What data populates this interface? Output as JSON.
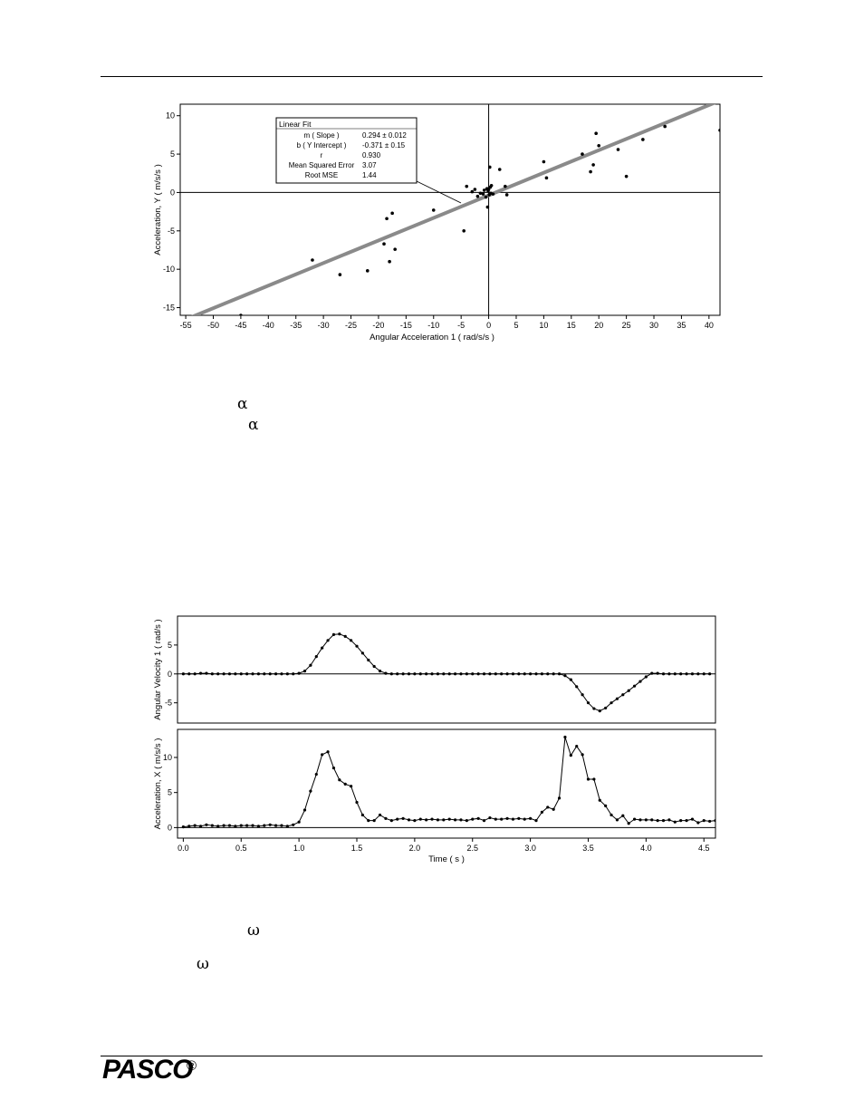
{
  "page": {
    "greek": [
      "α",
      "α",
      "ω",
      "ω"
    ]
  },
  "footer": {
    "logo": "PASCO",
    "registered": "®"
  },
  "chart_data": [
    {
      "type": "scatter",
      "xlabel": "Angular Acceleration 1 ( rad/s/s )",
      "ylabel": "Acceleration, Y ( m/s/s )",
      "xlim": [
        -56,
        42
      ],
      "ylim": [
        -16,
        11.5
      ],
      "xticks": [
        -55,
        -50,
        -45,
        -40,
        -35,
        -30,
        -25,
        -20,
        -15,
        -10,
        -5,
        0,
        5,
        10,
        15,
        20,
        25,
        30,
        35,
        40
      ],
      "yticks": [
        -15,
        -10,
        -5,
        0,
        5,
        10
      ],
      "fit": {
        "title": "Linear Fit",
        "rows": [
          {
            "label": "m ( Slope )",
            "value": "0.294 ± 0.012"
          },
          {
            "label": "b ( Y Intercept )",
            "value": "-0.371 ±  0.15"
          },
          {
            "label": "r",
            "value": "0.930"
          },
          {
            "label": "Mean Squared Error",
            "value": "3.07"
          },
          {
            "label": "Root MSE",
            "value": "1.44"
          }
        ],
        "slope": 0.294,
        "intercept": -0.371
      },
      "points": [
        [
          -45,
          -16
        ],
        [
          -32,
          -8.8
        ],
        [
          -27,
          -10.7
        ],
        [
          -22,
          -10.2
        ],
        [
          -19,
          -6.7
        ],
        [
          -18.5,
          -3.4
        ],
        [
          -18,
          -9
        ],
        [
          -17.5,
          -2.7
        ],
        [
          -17,
          -7.4
        ],
        [
          -10,
          -2.3
        ],
        [
          -4.5,
          -5
        ],
        [
          -4,
          0.8
        ],
        [
          -3,
          0.1
        ],
        [
          -2.5,
          0.4
        ],
        [
          -2,
          -0.5
        ],
        [
          -1.5,
          -0.1
        ],
        [
          -1,
          -0.2
        ],
        [
          -0.8,
          0.3
        ],
        [
          -0.5,
          -0.6
        ],
        [
          -0.3,
          0.5
        ],
        [
          -0.2,
          -1.9
        ],
        [
          -0.1,
          0.2
        ],
        [
          0,
          0.4
        ],
        [
          0.1,
          -0.3
        ],
        [
          0.2,
          3.3
        ],
        [
          0.3,
          0.7
        ],
        [
          0.4,
          -0.1
        ],
        [
          0.5,
          0.9
        ],
        [
          0.8,
          -0.2
        ],
        [
          2,
          3.0
        ],
        [
          3,
          0.8
        ],
        [
          3.3,
          -0.3
        ],
        [
          10,
          4.0
        ],
        [
          10.5,
          1.9
        ],
        [
          17,
          5.0
        ],
        [
          18.5,
          2.7
        ],
        [
          19,
          3.6
        ],
        [
          19.5,
          7.7
        ],
        [
          20,
          6.1
        ],
        [
          23.5,
          5.6
        ],
        [
          25,
          2.1
        ],
        [
          28,
          6.9
        ],
        [
          32,
          8.6
        ],
        [
          42,
          8.1
        ]
      ]
    },
    {
      "type": "line",
      "ylabel": "Angular Velocity 1 ( rad/s )",
      "ylim": [
        -8.5,
        10
      ],
      "yticks": [
        -5,
        0,
        5
      ],
      "xlim": [
        -0.05,
        4.6
      ],
      "series": [
        {
          "x": [
            0,
            0.05,
            0.1,
            0.15,
            0.2,
            0.25,
            0.3,
            0.35,
            0.4,
            0.45,
            0.5,
            0.55,
            0.6,
            0.65,
            0.7,
            0.75,
            0.8,
            0.85,
            0.9,
            0.95,
            1.0,
            1.05,
            1.1,
            1.15,
            1.2,
            1.25,
            1.3,
            1.35,
            1.4,
            1.45,
            1.5,
            1.55,
            1.6,
            1.65,
            1.7,
            1.75,
            1.8,
            1.85,
            1.9,
            1.95,
            2.0,
            2.05,
            2.1,
            2.15,
            2.2,
            2.25,
            2.3,
            2.35,
            2.4,
            2.45,
            2.5,
            2.55,
            2.6,
            2.65,
            2.7,
            2.75,
            2.8,
            2.85,
            2.9,
            2.95,
            3.0,
            3.05,
            3.1,
            3.15,
            3.2,
            3.25,
            3.3,
            3.35,
            3.4,
            3.45,
            3.5,
            3.55,
            3.6,
            3.65,
            3.7,
            3.75,
            3.8,
            3.85,
            3.9,
            3.95,
            4.0,
            4.05,
            4.1,
            4.15,
            4.2,
            4.25,
            4.3,
            4.35,
            4.4,
            4.45,
            4.5,
            4.55
          ],
          "values": [
            0,
            0,
            0,
            0.1,
            0.1,
            0,
            0,
            0,
            0,
            0,
            0,
            0,
            0,
            0,
            0,
            0,
            0,
            0,
            0,
            0,
            0.1,
            0.5,
            1.5,
            3.0,
            4.5,
            5.8,
            6.8,
            6.9,
            6.5,
            5.8,
            4.8,
            3.6,
            2.4,
            1.3,
            0.5,
            0.1,
            0,
            0,
            0,
            0,
            0,
            0,
            0,
            0,
            0,
            0,
            0,
            0,
            0,
            0,
            0,
            0,
            0,
            0,
            0,
            0,
            0,
            0,
            0,
            0,
            0,
            0,
            0,
            0,
            0,
            0,
            -0.3,
            -1.0,
            -2.2,
            -3.6,
            -5.0,
            -6.0,
            -6.4,
            -5.9,
            -5.0,
            -4.3,
            -3.6,
            -2.9,
            -2.1,
            -1.3,
            -0.5,
            0.1,
            0.1,
            0,
            0,
            0,
            0,
            0,
            0,
            0,
            0,
            0
          ]
        }
      ]
    },
    {
      "type": "line",
      "xlabel": "Time ( s )",
      "ylabel": "Acceleration, X ( m/s/s )",
      "ylim": [
        -1.5,
        14
      ],
      "yticks": [
        0,
        5,
        10
      ],
      "xlim": [
        -0.05,
        4.6
      ],
      "xticks": [
        "0.0",
        "0.5",
        "1.0",
        "1.5",
        "2.0",
        "2.5",
        "3.0",
        "3.5",
        "4.0",
        "4.5"
      ],
      "series": [
        {
          "x": [
            0,
            0.05,
            0.1,
            0.15,
            0.2,
            0.25,
            0.3,
            0.35,
            0.4,
            0.45,
            0.5,
            0.55,
            0.6,
            0.65,
            0.7,
            0.75,
            0.8,
            0.85,
            0.9,
            0.95,
            1.0,
            1.05,
            1.1,
            1.15,
            1.2,
            1.25,
            1.3,
            1.35,
            1.4,
            1.45,
            1.5,
            1.55,
            1.6,
            1.65,
            1.7,
            1.75,
            1.8,
            1.85,
            1.9,
            1.95,
            2.0,
            2.05,
            2.1,
            2.15,
            2.2,
            2.25,
            2.3,
            2.35,
            2.4,
            2.45,
            2.5,
            2.55,
            2.6,
            2.65,
            2.7,
            2.75,
            2.8,
            2.85,
            2.9,
            2.95,
            3.0,
            3.05,
            3.1,
            3.15,
            3.2,
            3.25,
            3.3,
            3.35,
            3.4,
            3.45,
            3.5,
            3.55,
            3.6,
            3.65,
            3.7,
            3.75,
            3.8,
            3.85,
            3.9,
            3.95,
            4.0,
            4.05,
            4.1,
            4.15,
            4.2,
            4.25,
            4.3,
            4.35,
            4.4,
            4.45,
            4.5,
            4.55,
            4.6
          ],
          "values": [
            0.1,
            0.2,
            0.3,
            0.2,
            0.4,
            0.3,
            0.2,
            0.3,
            0.3,
            0.2,
            0.3,
            0.3,
            0.3,
            0.2,
            0.3,
            0.4,
            0.3,
            0.3,
            0.2,
            0.4,
            0.8,
            2.5,
            5.2,
            7.6,
            10.4,
            10.8,
            8.5,
            6.8,
            6.2,
            5.9,
            3.6,
            1.8,
            1.0,
            1.0,
            1.8,
            1.3,
            1.0,
            1.2,
            1.3,
            1.1,
            1.0,
            1.2,
            1.1,
            1.2,
            1.1,
            1.1,
            1.2,
            1.1,
            1.1,
            1.0,
            1.2,
            1.3,
            1.0,
            1.4,
            1.2,
            1.2,
            1.3,
            1.2,
            1.3,
            1.2,
            1.3,
            1.0,
            2.2,
            2.9,
            2.6,
            4.2,
            12.9,
            10.3,
            11.6,
            10.4,
            6.9,
            6.9,
            3.9,
            3.1,
            1.8,
            1.1,
            1.7,
            0.6,
            1.2,
            1.1,
            1.1,
            1.1,
            1.0,
            1.0,
            1.1,
            0.8,
            1.0,
            1.0,
            1.2,
            0.7,
            1.0,
            0.9,
            1.0
          ]
        }
      ]
    }
  ]
}
